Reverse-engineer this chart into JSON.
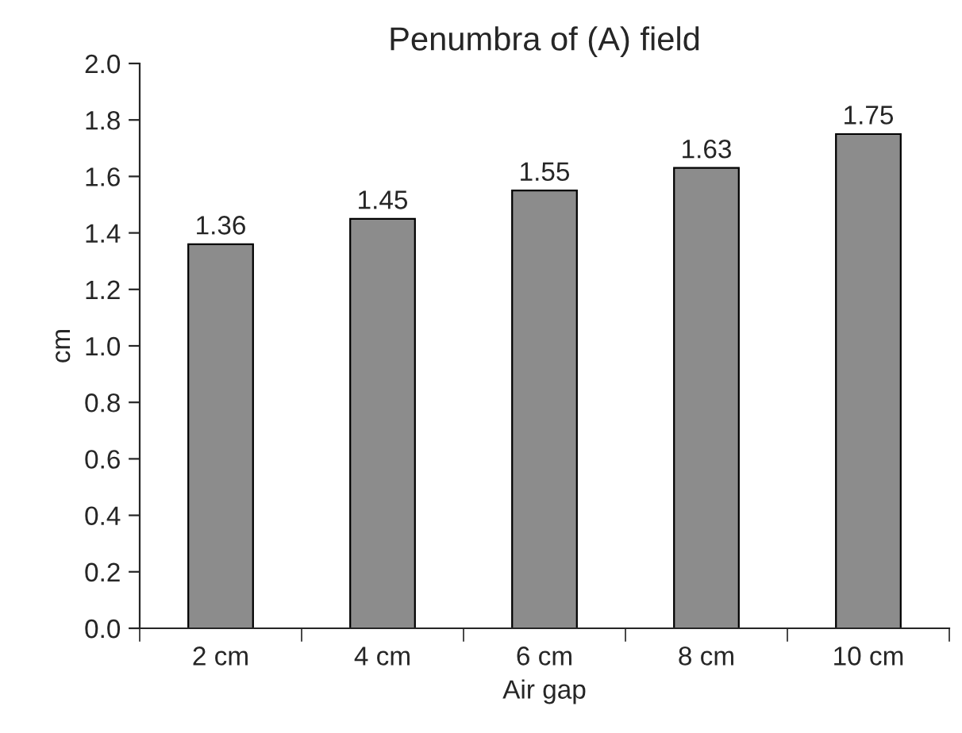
{
  "chart_data": {
    "type": "bar",
    "title": "Penumbra of (A) field",
    "xlabel": "Air gap",
    "ylabel": "cm",
    "categories": [
      "2 cm",
      "4 cm",
      "6 cm",
      "8 cm",
      "10 cm"
    ],
    "values": [
      1.36,
      1.45,
      1.55,
      1.63,
      1.75
    ],
    "color": "#8c8c8c",
    "ylim": [
      0,
      2.0
    ],
    "yticks": [
      {
        "value": 0,
        "label": "0.0"
      },
      {
        "value": 0.2,
        "label": "0.2"
      },
      {
        "value": 0.4,
        "label": "0.4"
      },
      {
        "value": 0.6,
        "label": "0.6"
      },
      {
        "value": 0.8,
        "label": "0.8"
      },
      {
        "value": 1.0,
        "label": "1.0"
      },
      {
        "value": 1.2,
        "label": "1.2"
      },
      {
        "value": 1.4,
        "label": "1.4"
      },
      {
        "value": 1.6,
        "label": "1.6"
      },
      {
        "value": 1.8,
        "label": "1.8"
      },
      {
        "value": 2.0,
        "label": "2.0"
      }
    ],
    "data_labels": true,
    "grid": false
  }
}
